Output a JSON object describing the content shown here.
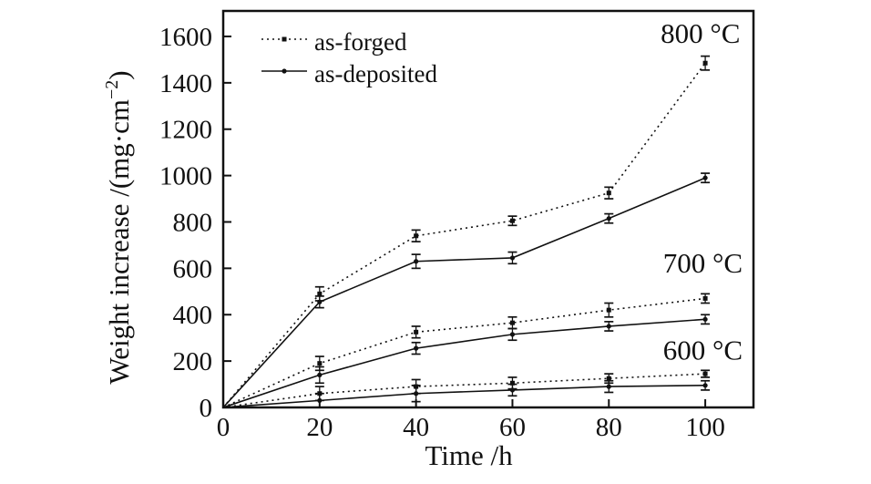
{
  "chart_data": {
    "type": "line",
    "title": "",
    "xlabel": "Time /h",
    "ylabel": "Weight increase /(mg·cm⁻²)",
    "ylabel_parts": {
      "main": "Weight increase /(mg·cm",
      "sup": "−2",
      "close": ")"
    },
    "xlim": [
      0,
      110
    ],
    "ylim": [
      0,
      1710
    ],
    "xticks": [
      0,
      20,
      40,
      60,
      80,
      100
    ],
    "yticks": [
      0,
      200,
      400,
      600,
      800,
      1000,
      1200,
      1400,
      1600
    ],
    "grid": false,
    "ink_color": "#111111",
    "background_color": "#ffffff",
    "legend": {
      "position": "top-left-inside",
      "entries": [
        {
          "label": "as-forged",
          "line_style": "dotted",
          "marker": "square"
        },
        {
          "label": "as-deposited",
          "line_style": "solid",
          "marker": "circle"
        }
      ]
    },
    "annotations": [
      {
        "text": "800 ℃",
        "x": 99,
        "y": 1615
      },
      {
        "text": "700 ℃",
        "x": 99.5,
        "y": 625
      },
      {
        "text": "600 ℃",
        "x": 99.5,
        "y": 250
      }
    ],
    "x": [
      0,
      20,
      40,
      60,
      80,
      100
    ],
    "series": [
      {
        "name": "as-forged 800 ℃",
        "condition": "as-forged",
        "temperature": "800C",
        "line_style": "dotted",
        "marker": "square",
        "y": [
          0,
          490,
          740,
          805,
          925,
          1485
        ],
        "yerr": [
          0,
          30,
          25,
          20,
          25,
          30
        ]
      },
      {
        "name": "as-deposited 800 ℃",
        "condition": "as-deposited",
        "temperature": "800C",
        "line_style": "solid",
        "marker": "circle",
        "y": [
          0,
          455,
          630,
          645,
          815,
          990
        ],
        "yerr": [
          0,
          25,
          30,
          25,
          20,
          20
        ]
      },
      {
        "name": "as-forged 700 ℃",
        "condition": "as-forged",
        "temperature": "700C",
        "line_style": "dotted",
        "marker": "square",
        "y": [
          0,
          190,
          325,
          365,
          420,
          470
        ],
        "yerr": [
          0,
          30,
          25,
          25,
          30,
          20
        ]
      },
      {
        "name": "as-deposited 700 ℃",
        "condition": "as-deposited",
        "temperature": "700C",
        "line_style": "solid",
        "marker": "circle",
        "y": [
          0,
          140,
          255,
          315,
          350,
          380
        ],
        "yerr": [
          0,
          35,
          25,
          25,
          20,
          20
        ]
      },
      {
        "name": "as-forged 600 ℃",
        "condition": "as-forged",
        "temperature": "600C",
        "line_style": "dotted",
        "marker": "square",
        "y": [
          0,
          60,
          90,
          105,
          125,
          145
        ],
        "yerr": [
          0,
          30,
          30,
          25,
          20,
          15
        ]
      },
      {
        "name": "as-deposited 600 ℃",
        "condition": "as-deposited",
        "temperature": "600C",
        "line_style": "solid",
        "marker": "circle",
        "y": [
          0,
          30,
          60,
          75,
          90,
          95
        ],
        "yerr": [
          0,
          30,
          35,
          25,
          25,
          20
        ]
      }
    ]
  }
}
